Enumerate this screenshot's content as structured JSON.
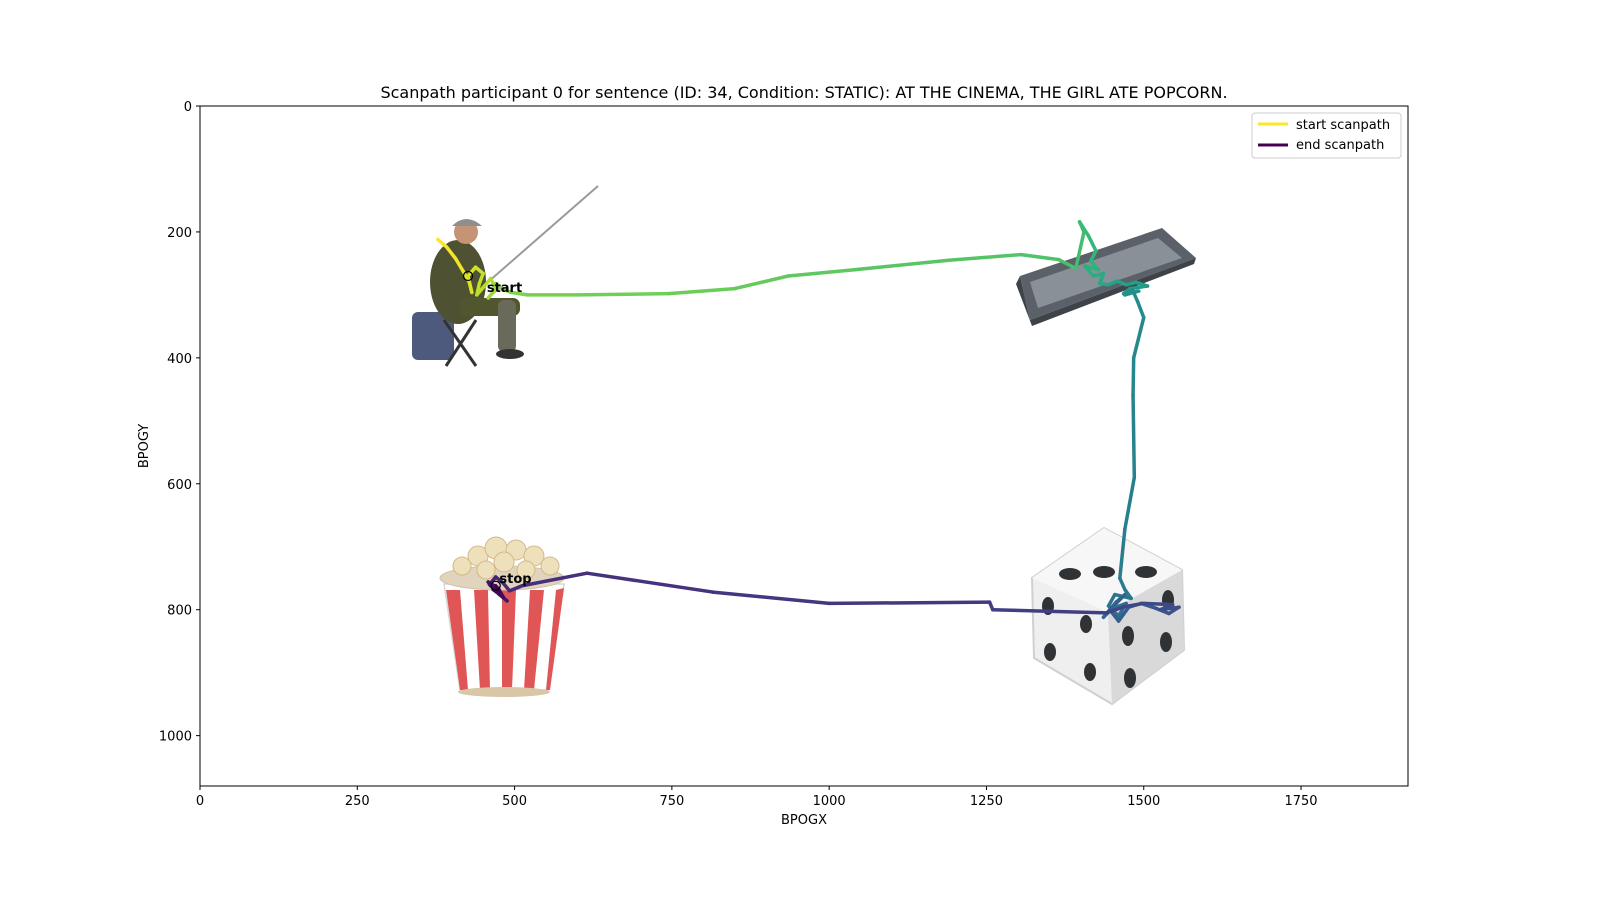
{
  "chart_data": {
    "type": "line",
    "title": "Scanpath participant 0 for sentence (ID: 34, Condition: STATIC):  AT THE CINEMA, THE GIRL ATE POPCORN.",
    "xlabel": "BPOGX",
    "ylabel": "BPOGY",
    "xlim": [
      0,
      1920
    ],
    "ylim": [
      1080,
      0
    ],
    "y_inverted": true,
    "xticks": [
      0,
      250,
      500,
      750,
      1000,
      1250,
      1500,
      1750
    ],
    "yticks": [
      0,
      200,
      400,
      600,
      800,
      1000
    ],
    "grid": false,
    "legend": {
      "placement": "top-right",
      "entries": [
        {
          "label": "start scanpath",
          "color": "#fde725"
        },
        {
          "label": "end scanpath",
          "color": "#440154"
        }
      ]
    },
    "colormap": "viridis (yellow = start, purple = end)",
    "images": [
      {
        "name": "fisherman",
        "x": 470,
        "y": 300
      },
      {
        "name": "keyboard",
        "x": 1430,
        "y": 270
      },
      {
        "name": "dice",
        "x": 1460,
        "y": 800
      },
      {
        "name": "popcorn",
        "x": 490,
        "y": 780
      }
    ],
    "annotations": [
      {
        "text": "start",
        "x": 440,
        "y": 300
      },
      {
        "text": "stop",
        "x": 460,
        "y": 762
      }
    ],
    "scanpath": {
      "x": [
        378,
        392,
        406,
        418,
        428,
        432,
        426,
        438,
        450,
        444,
        440,
        452,
        462,
        470,
        458,
        466,
        476,
        470,
        480,
        494,
        520,
        600,
        745,
        850,
        935,
        1040,
        1190,
        1305,
        1365,
        1392,
        1405,
        1398,
        1412,
        1424,
        1416,
        1428,
        1406,
        1420,
        1436,
        1430,
        1444,
        1458,
        1472,
        1488,
        1506,
        1478,
        1468,
        1492,
        1470,
        1482,
        1490,
        1500,
        1484,
        1483,
        1485,
        1470,
        1462,
        1470,
        1480,
        1454,
        1444,
        1460,
        1472,
        1450,
        1436,
        1456,
        1470,
        1446,
        1460,
        1476,
        1496,
        1520,
        1540,
        1556,
        1526,
        1546,
        1500,
        1470,
        1440,
        1260,
        1255,
        1000,
        815,
        615,
        512,
        492,
        482,
        470,
        460,
        476,
        488,
        470,
        458,
        474,
        482,
        466,
        476,
        470
      ],
      "y": [
        212,
        224,
        242,
        262,
        280,
        296,
        270,
        256,
        266,
        282,
        300,
        286,
        274,
        290,
        305,
        296,
        288,
        282,
        290,
        296,
        300,
        300,
        298,
        290,
        270,
        260,
        245,
        236,
        244,
        258,
        200,
        184,
        206,
        230,
        246,
        260,
        254,
        270,
        266,
        282,
        284,
        278,
        284,
        280,
        286,
        290,
        298,
        294,
        300,
        292,
        310,
        336,
        400,
        460,
        590,
        672,
        750,
        768,
        782,
        776,
        794,
        810,
        790,
        798,
        812,
        788,
        776,
        800,
        818,
        796,
        790,
        798,
        806,
        796,
        800,
        792,
        790,
        795,
        805,
        800,
        788,
        790,
        772,
        742,
        762,
        770,
        758,
        748,
        760,
        776,
        786,
        770,
        756,
        766,
        780,
        768,
        770,
        762
      ]
    }
  }
}
